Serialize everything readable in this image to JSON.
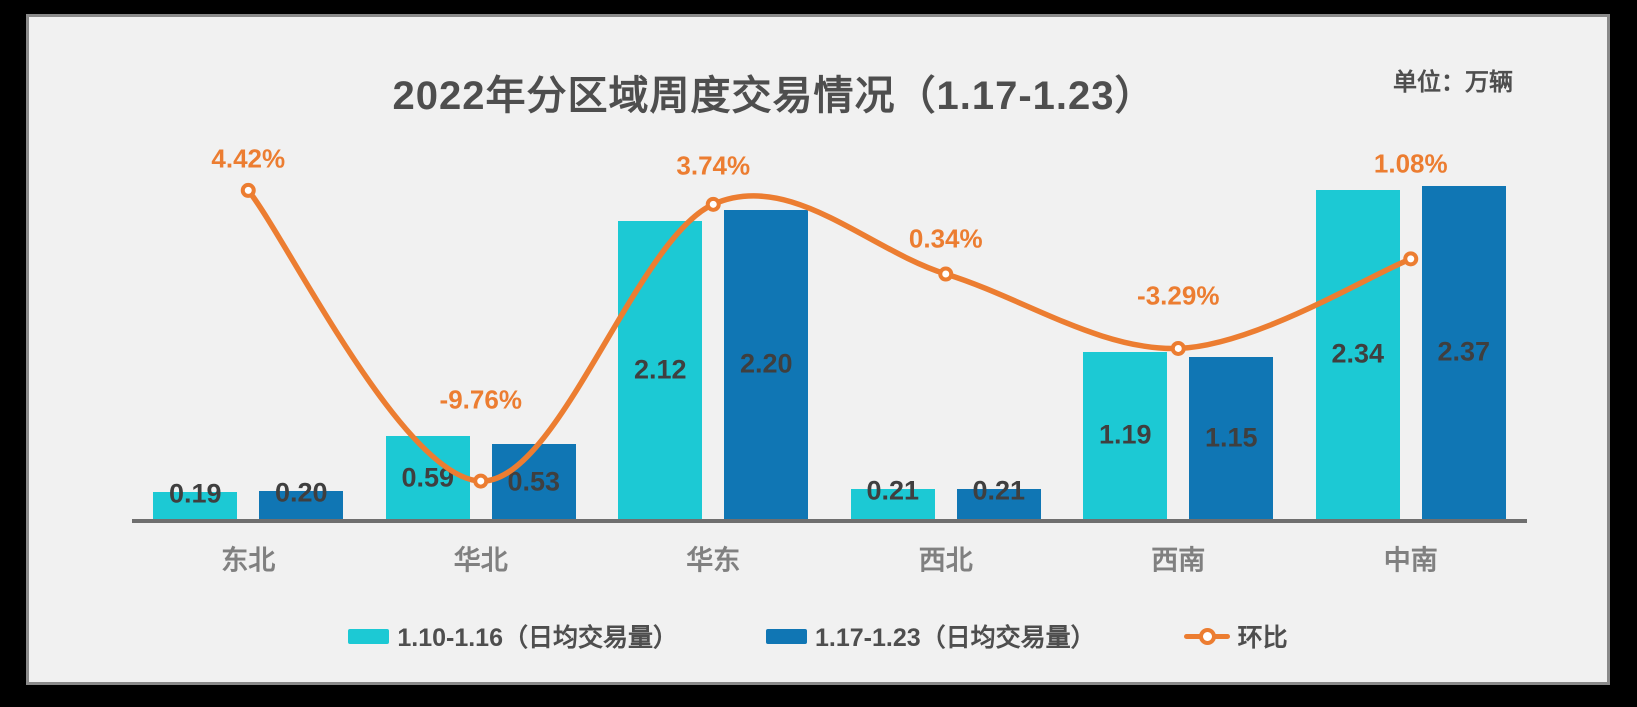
{
  "chart_data": {
    "type": "bar+line",
    "title": "2022年分区域周度交易情况（1.17-1.23）",
    "unit_label": "单位：万辆",
    "categories": [
      "东北",
      "华北",
      "华东",
      "西北",
      "西南",
      "中南"
    ],
    "series": [
      {
        "name": "1.10-1.16（日均交易量）",
        "type": "bar",
        "color": "#1CC9D4",
        "values": [
          0.19,
          0.59,
          2.12,
          0.21,
          1.19,
          2.34
        ],
        "value_labels": [
          "0.19",
          "0.59",
          "2.12",
          "0.21",
          "1.19",
          "2.34"
        ]
      },
      {
        "name": "1.17-1.23（日均交易量）",
        "type": "bar",
        "color": "#1076B4",
        "values": [
          0.2,
          0.53,
          2.2,
          0.21,
          1.15,
          2.37
        ],
        "value_labels": [
          "0.20",
          "0.53",
          "2.20",
          "0.21",
          "1.15",
          "2.37"
        ]
      },
      {
        "name": "环比",
        "type": "line",
        "color": "#EC7D31",
        "values": [
          4.42,
          -9.76,
          3.74,
          0.34,
          -3.29,
          1.08
        ],
        "value_labels": [
          "4.42%",
          "-9.76%",
          "3.74%",
          "0.34%",
          "-3.29%",
          "1.08%"
        ]
      }
    ],
    "legend_position": "bottom",
    "grid": false,
    "value_axis_visible": false
  },
  "colors": {
    "canvas": "#000000",
    "panel_bg": "#F1F1F1",
    "panel_border": "#8A8A8A",
    "axis_line": "#6F6F6F",
    "bar_series_1": "#1CC9D4",
    "bar_series_2": "#1076B4",
    "line_series": "#EC7D31",
    "title_text": "#4E4E4E",
    "bar_value_text": "#3F3F3F",
    "category_text": "#808080"
  }
}
